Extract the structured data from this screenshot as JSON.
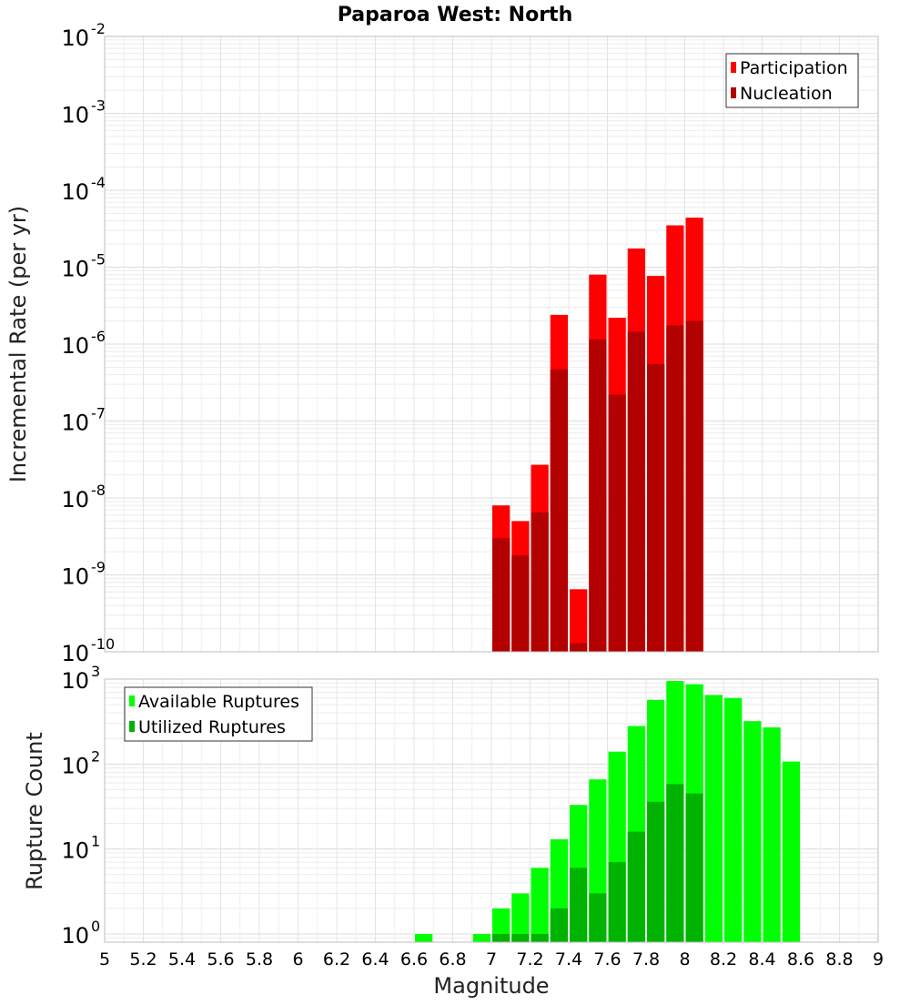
{
  "chart_data": [
    {
      "type": "bar",
      "title": "Paparoa West: North",
      "ylabel": "Incremental Rate (per yr)",
      "xlabel": "",
      "xlim": [
        5,
        9
      ],
      "ylim": [
        1e-10,
        0.01
      ],
      "yscale": "log",
      "y_tick_exponents": [
        "-10",
        "-9",
        "-8",
        "-7",
        "-6",
        "-5",
        "-4",
        "-3",
        "-2"
      ],
      "y_tick_base": "10",
      "grid": true,
      "legend_position": "top-right",
      "bin_width": 0.1,
      "x": [
        7.05,
        7.15,
        7.25,
        7.35,
        7.45,
        7.55,
        7.65,
        7.75,
        7.85,
        7.95,
        8.05
      ],
      "series": [
        {
          "name": "Participation",
          "color": "#ff0000",
          "values": [
            8e-09,
            5e-09,
            2.7e-08,
            2.4e-06,
            6.5e-10,
            8e-06,
            2.2e-06,
            1.75e-05,
            7.7e-06,
            3.5e-05,
            4.4e-05
          ]
        },
        {
          "name": "Nucleation",
          "color": "#b30000",
          "values": [
            3e-09,
            1.8e-09,
            6.5e-09,
            4.7e-07,
            1.3e-10,
            1.15e-06,
            2.2e-07,
            1.45e-06,
            5.5e-07,
            1.75e-06,
            2e-06
          ]
        }
      ]
    },
    {
      "type": "bar",
      "ylabel": "Rupture Count",
      "xlabel": "Magnitude",
      "xlim": [
        5,
        9
      ],
      "ylim": [
        0.8,
        1000
      ],
      "yscale": "log",
      "y_tick_exponents": [
        "0",
        "1",
        "2",
        "3"
      ],
      "y_tick_base": "10",
      "x_ticks": [
        "5",
        "5.2",
        "5.4",
        "5.6",
        "5.8",
        "6",
        "6.2",
        "6.4",
        "6.6",
        "6.8",
        "7",
        "7.2",
        "7.4",
        "7.6",
        "7.8",
        "8",
        "8.2",
        "8.4",
        "8.6",
        "8.8",
        "9"
      ],
      "grid": true,
      "legend_position": "top-left",
      "bin_width": 0.1,
      "x": [
        6.65,
        6.95,
        7.05,
        7.15,
        7.25,
        7.35,
        7.45,
        7.55,
        7.65,
        7.75,
        7.85,
        7.95,
        8.05,
        8.15,
        8.25,
        8.35,
        8.45,
        8.55
      ],
      "series": [
        {
          "name": "Available Ruptures",
          "color": "#00ff00",
          "values": [
            1,
            1,
            2,
            3,
            6,
            13,
            33,
            66,
            140,
            280,
            570,
            950,
            870,
            650,
            600,
            320,
            270,
            107
          ]
        },
        {
          "name": "Utilized Ruptures",
          "color": "#00b300",
          "values": [
            0,
            0,
            1,
            1,
            1,
            2,
            6,
            3,
            7,
            16,
            36,
            58,
            45,
            0,
            0,
            0,
            0,
            0
          ]
        }
      ]
    }
  ]
}
